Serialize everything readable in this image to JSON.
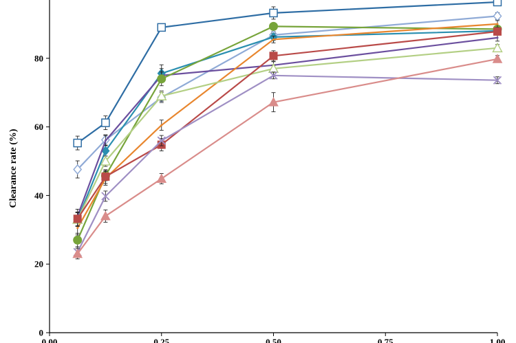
{
  "chart_data": {
    "type": "line",
    "ylabel": "Clearance rate (%)",
    "xlabel": "",
    "xlim": [
      0,
      1
    ],
    "ylim": [
      0,
      100
    ],
    "x_ticks": [
      {
        "value": 0,
        "label": "0.00"
      },
      {
        "value": 0.25,
        "label": "0.25"
      },
      {
        "value": 0.5,
        "label": "0.50"
      },
      {
        "value": 0.75,
        "label": "0.75"
      },
      {
        "value": 1,
        "label": "1.00"
      }
    ],
    "y_ticks": [
      {
        "value": 0,
        "label": "0"
      },
      {
        "value": 20,
        "label": "20"
      },
      {
        "value": 40,
        "label": "40"
      },
      {
        "value": 60,
        "label": "60"
      },
      {
        "value": 80,
        "label": "80"
      }
    ],
    "grid": false,
    "x": [
      0.0625,
      0.125,
      0.25,
      0.5,
      1.0
    ],
    "series": [
      {
        "color": "#2e6da4",
        "marker": "square-open",
        "values": [
          55.3,
          61.2,
          89.0,
          93.2,
          96.4
        ],
        "errors": [
          2.0,
          2.0,
          1.0,
          1.8,
          1.0
        ]
      },
      {
        "color": "#8faad6",
        "marker": "diamond-open",
        "values": [
          47.6,
          56.2,
          68.6,
          86.8,
          92.3
        ],
        "errors": [
          2.5,
          1.5,
          1.5,
          1.0,
          1.0
        ]
      },
      {
        "color": "#2a8fb0",
        "marker": "diamond-filled",
        "values": [
          33.0,
          53.0,
          75.6,
          86.2,
          88.0
        ],
        "errors": [
          2.0,
          1.5,
          2.5,
          1.0,
          1.0
        ]
      },
      {
        "color": "#6b4f9e",
        "marker": "none",
        "values": [
          34.0,
          56.0,
          75.0,
          78.0,
          86.0
        ],
        "errors": [
          2.0,
          1.5,
          2.0,
          1.0,
          1.0
        ]
      },
      {
        "color": "#77a43a",
        "marker": "circle-filled",
        "values": [
          27.0,
          45.8,
          74.0,
          89.3,
          88.5
        ],
        "errors": [
          2.0,
          1.5,
          2.0,
          1.0,
          1.0
        ]
      },
      {
        "color": "#e8862e",
        "marker": "none",
        "values": [
          30.5,
          45.0,
          60.5,
          85.5,
          90.0
        ],
        "errors": [
          2.0,
          2.0,
          1.5,
          1.0,
          1.0
        ]
      },
      {
        "color": "#b3cf84",
        "marker": "triangle-open",
        "values": [
          33.0,
          50.0,
          69.0,
          77.0,
          83.0
        ],
        "errors": [
          2.0,
          1.5,
          1.5,
          1.0,
          1.0
        ]
      },
      {
        "color": "#b94a48",
        "marker": "square-filled",
        "values": [
          33.2,
          45.5,
          54.8,
          80.7,
          87.8
        ],
        "errors": [
          2.0,
          2.0,
          1.8,
          1.5,
          1.0
        ]
      },
      {
        "color": "#9f8fc4",
        "marker": "x",
        "values": [
          23.5,
          39.8,
          56.0,
          75.0,
          73.6
        ],
        "errors": [
          1.5,
          1.5,
          1.5,
          1.0,
          1.0
        ]
      },
      {
        "color": "#d98c8a",
        "marker": "triangle-filled",
        "values": [
          23.0,
          34.0,
          44.9,
          67.2,
          79.8
        ],
        "errors": [
          1.5,
          1.8,
          1.5,
          2.8,
          1.0
        ]
      }
    ]
  }
}
